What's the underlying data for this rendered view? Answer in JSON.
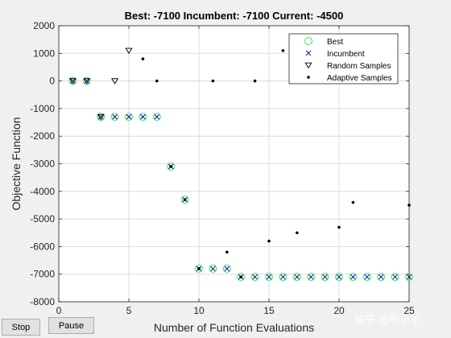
{
  "chart_data": {
    "type": "scatter",
    "title": "Best: -7100 Incumbent: -7100 Current: -4500",
    "xlabel": "Number of Function Evaluations",
    "ylabel": "Objective Function",
    "xlim": [
      0,
      25
    ],
    "ylim": [
      -8000,
      2000
    ],
    "xticks": [
      0,
      5,
      10,
      15,
      20,
      25
    ],
    "yticks": [
      -8000,
      -7000,
      -6000,
      -5000,
      -4000,
      -3000,
      -2000,
      -1000,
      0,
      1000,
      2000
    ],
    "grid": true,
    "legend_position": "top-right",
    "series": [
      {
        "name": "Best",
        "marker": "circle",
        "color": "#55ee77",
        "x": [
          1,
          2,
          3,
          4,
          5,
          6,
          7,
          8,
          9,
          10,
          11,
          12,
          13,
          14,
          15,
          16,
          17,
          18,
          19,
          20,
          21,
          22,
          23,
          24,
          25
        ],
        "y": [
          0,
          0,
          -1300,
          -1300,
          -1300,
          -1300,
          -1300,
          -3100,
          -4300,
          -6800,
          -6800,
          -6800,
          -7100,
          -7100,
          -7100,
          -7100,
          -7100,
          -7100,
          -7100,
          -7100,
          -7100,
          -7100,
          -7100,
          -7100,
          -7100
        ]
      },
      {
        "name": "Incumbent",
        "marker": "x",
        "color": "#1f1fb4",
        "x": [
          1,
          2,
          3,
          4,
          5,
          6,
          7,
          8,
          9,
          10,
          11,
          12,
          13,
          14,
          15,
          16,
          17,
          18,
          19,
          20,
          21,
          22,
          23,
          24,
          25
        ],
        "y": [
          0,
          0,
          -1300,
          -1300,
          -1300,
          -1300,
          -1300,
          -3100,
          -4300,
          -6800,
          -6800,
          -6800,
          -7100,
          -7100,
          -7100,
          -7100,
          -7100,
          -7100,
          -7100,
          -7100,
          -7100,
          -7100,
          -7100,
          -7100,
          -7100
        ]
      },
      {
        "name": "Random Samples",
        "marker": "triangle-down",
        "color": "#000000",
        "x": [
          1,
          2,
          3,
          4,
          5
        ],
        "y": [
          0,
          0,
          -1300,
          0,
          1100
        ]
      },
      {
        "name": "Adaptive Samples",
        "marker": "dot",
        "color": "#000000",
        "x": [
          6,
          7,
          8,
          9,
          10,
          11,
          12,
          13,
          14,
          15,
          16,
          17,
          20,
          21,
          25
        ],
        "y": [
          800,
          0,
          -3100,
          -4300,
          -6800,
          0,
          -6200,
          -7100,
          0,
          -5800,
          1100,
          -5500,
          -5300,
          -4400,
          -4500
        ]
      }
    ]
  },
  "buttons": {
    "stop_label": "Stop",
    "pause_label": "Pause"
  },
  "watermark": "知乎 @吃小羊"
}
